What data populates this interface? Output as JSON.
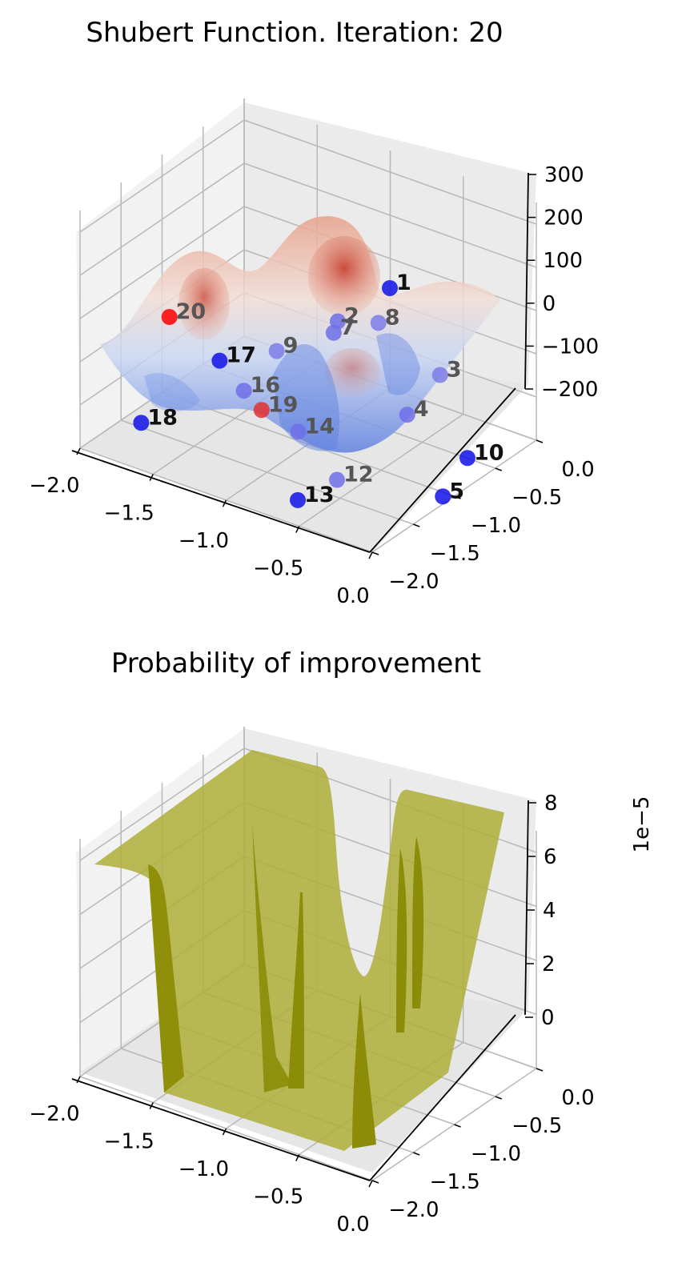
{
  "chart_data": [
    {
      "type": "surface3d",
      "title": "Shubert Function. Iteration: 20",
      "colormap": "coolwarm",
      "x_ticks": [
        "−2.0",
        "−1.5",
        "−1.0",
        "−0.5",
        "0.0"
      ],
      "y_ticks": [
        "−2.0",
        "−1.5",
        "−1.0",
        "−0.5",
        "0.0"
      ],
      "z_ticks": [
        "−200",
        "−100",
        "0",
        "100",
        "200",
        "300"
      ],
      "xlim": [
        -2.0,
        0.0
      ],
      "ylim": [
        -2.0,
        0.0
      ],
      "zlim": [
        -200,
        300
      ],
      "points": [
        {
          "label": "1",
          "x": -0.75,
          "y": -0.45,
          "z": 120,
          "color": "#1010e8"
        },
        {
          "label": "2",
          "x": -1.05,
          "y": -0.55,
          "z": 20,
          "color": "#6f6fe8"
        },
        {
          "label": "3",
          "x": -0.35,
          "y": -0.55,
          "z": -20,
          "color": "#7c7ce8"
        },
        {
          "label": "4",
          "x": -0.35,
          "y": -0.95,
          "z": -60,
          "color": "#6f6fe8"
        },
        {
          "label": "5",
          "x": -0.05,
          "y": -1.05,
          "z": -200,
          "color": "#1010e8"
        },
        {
          "label": "7",
          "x": -1.05,
          "y": -0.6,
          "z": 0,
          "color": "#6f6fe8"
        },
        {
          "label": "8",
          "x": -0.8,
          "y": -0.5,
          "z": 40,
          "color": "#7c7ce8"
        },
        {
          "label": "9",
          "x": -1.3,
          "y": -0.85,
          "z": -40,
          "color": "#7c7ce8"
        },
        {
          "label": "10",
          "x": -0.05,
          "y": -0.75,
          "z": -150,
          "color": "#1010e8"
        },
        {
          "label": "12",
          "x": -0.55,
          "y": -1.45,
          "z": -170,
          "color": "#6f6fe8"
        },
        {
          "label": "13",
          "x": -0.65,
          "y": -1.75,
          "z": -190,
          "color": "#1010e8"
        },
        {
          "label": "14",
          "x": -0.9,
          "y": -1.3,
          "z": -120,
          "color": "#6f6fe8"
        },
        {
          "label": "16",
          "x": -1.3,
          "y": -1.25,
          "z": -80,
          "color": "#6f6fe8"
        },
        {
          "label": "17",
          "x": -1.55,
          "y": -1.1,
          "z": -60,
          "color": "#1010e8"
        },
        {
          "label": "18",
          "x": -1.75,
          "y": -1.7,
          "z": -150,
          "color": "#1010e8"
        },
        {
          "label": "19",
          "x": -1.15,
          "y": -1.3,
          "z": -100,
          "color": "#e03030"
        },
        {
          "label": "20",
          "x": -1.95,
          "y": -1.0,
          "z": -20,
          "color": "#ff0000"
        }
      ]
    },
    {
      "type": "surface3d",
      "title": "Probability of improvement",
      "surface_color": "#9a9a10",
      "x_ticks": [
        "−2.0",
        "−1.5",
        "−1.0",
        "−0.5",
        "0.0"
      ],
      "y_ticks": [
        "−2.0",
        "−1.5",
        "−1.0",
        "−0.5",
        "0.0"
      ],
      "z_ticks": [
        "0",
        "2",
        "4",
        "6",
        "8"
      ],
      "z_offset_label": "1e−5",
      "xlim": [
        -2.0,
        0.0
      ],
      "ylim": [
        -2.0,
        0.0
      ],
      "zlim": [
        0,
        8
      ]
    }
  ]
}
